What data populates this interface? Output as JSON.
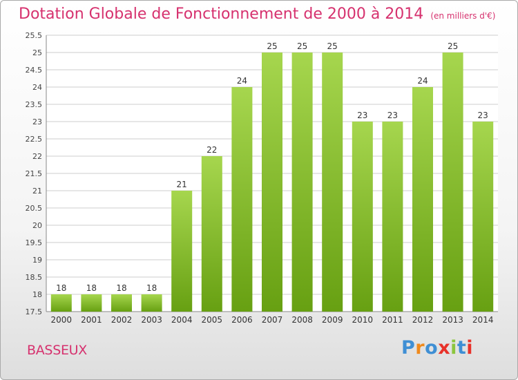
{
  "header": {
    "title": "Dotation Globale de Fonctionnement de 2000 à 2014",
    "unit_note": "(en milliers d'€)"
  },
  "footer": {
    "commune": "BASSEUX",
    "logo_text": "Proxiti"
  },
  "colors": {
    "title": "#d6316e",
    "bar_light": "#a6d64e",
    "bar_dark": "#67a012",
    "grid": "#cccccc",
    "logo": [
      "#3f8fd4",
      "#f08a1c",
      "#3f8fd4",
      "#e8322a",
      "#8cc63f",
      "#3f8fd4",
      "#e8322a"
    ]
  },
  "chart_data": {
    "type": "bar",
    "categories": [
      "2000",
      "2001",
      "2002",
      "2003",
      "2004",
      "2005",
      "2006",
      "2007",
      "2008",
      "2009",
      "2010",
      "2011",
      "2012",
      "2013",
      "2014"
    ],
    "values": [
      18,
      18,
      18,
      18,
      21,
      22,
      24,
      25,
      25,
      25,
      23,
      23,
      24,
      25,
      23
    ],
    "ylim": [
      17.5,
      25.5
    ],
    "yticks": [
      17.5,
      18,
      18.5,
      19,
      19.5,
      20,
      20.5,
      21,
      21.5,
      22,
      22.5,
      23,
      23.5,
      24,
      24.5,
      25,
      25.5
    ],
    "grid": true
  }
}
